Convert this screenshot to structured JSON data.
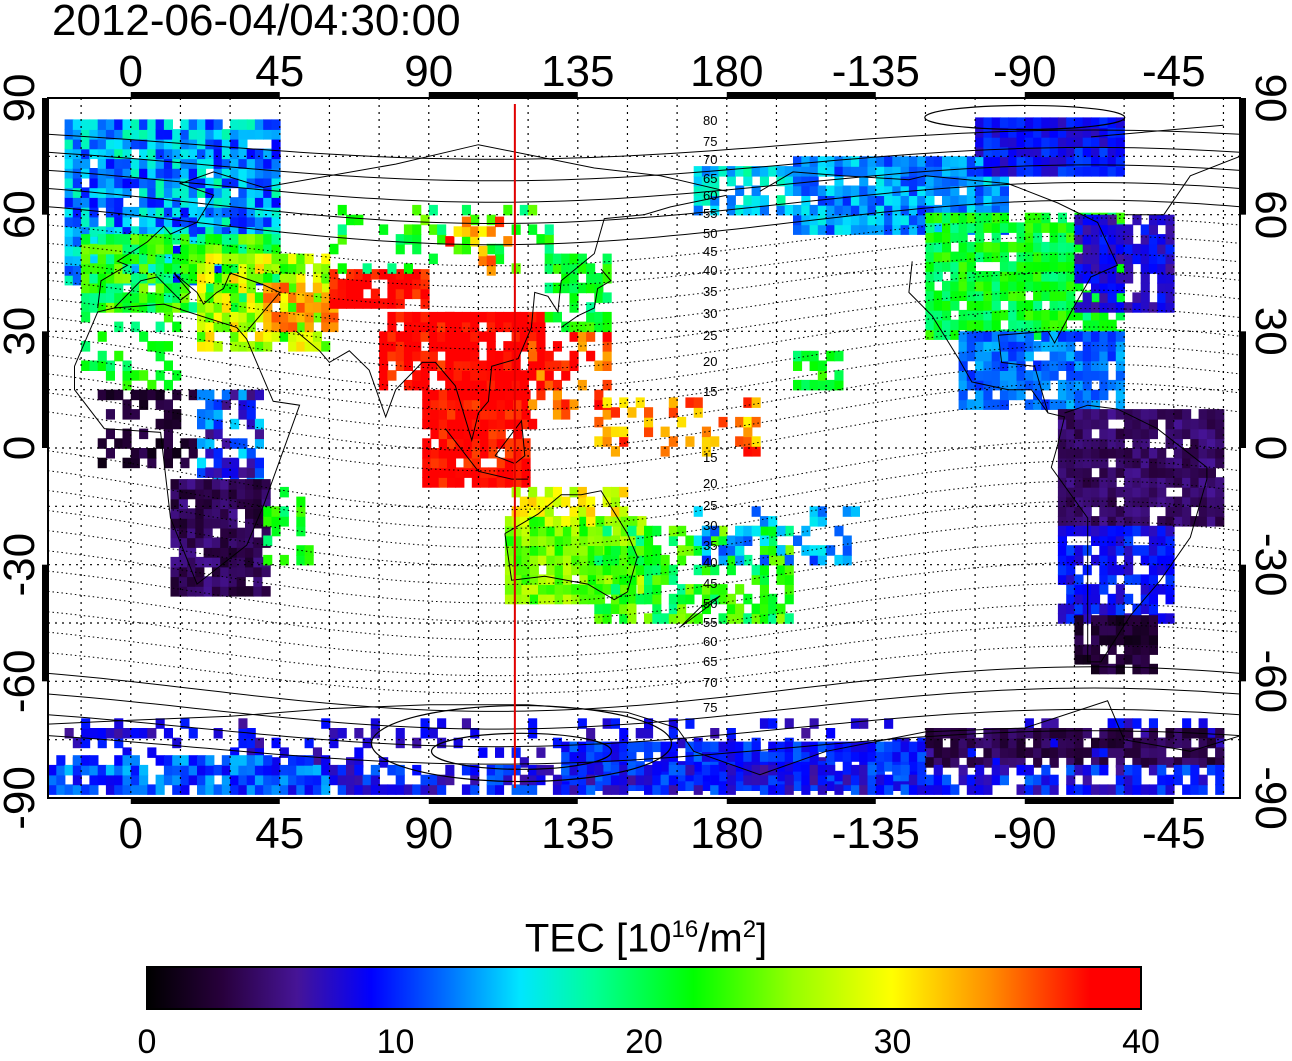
{
  "title": "2012-06-04/04:30:00",
  "top_lon_labels": [
    "0",
    "45",
    "90",
    "135",
    "180",
    "-135",
    "-90",
    "-45"
  ],
  "bottom_lon_labels": [
    "0",
    "45",
    "90",
    "135",
    "180",
    "-135",
    "-90",
    "-45"
  ],
  "left_lat_labels": [
    "90",
    "60",
    "30",
    "0",
    "-30",
    "-60",
    "-90"
  ],
  "right_lat_labels": [
    "90",
    "60",
    "30",
    "0",
    "-30",
    "-60",
    "-90"
  ],
  "mlat_labels_north": [
    "80",
    "75",
    "70",
    "65",
    "60",
    "55",
    "50",
    "45",
    "40",
    "35",
    "30",
    "25",
    "20",
    "15"
  ],
  "mlat_labels_south": [
    "15",
    "20",
    "25",
    "30",
    "35",
    "40",
    "45",
    "50",
    "55",
    "60",
    "65",
    "70",
    "75"
  ],
  "colorbar": {
    "title_main": "TEC  [10",
    "title_exp1": "16",
    "title_mid": "/m",
    "title_exp2": "2",
    "title_end": "]",
    "min": 0,
    "max": 40,
    "tick_labels": [
      "0",
      "10",
      "20",
      "30",
      "40"
    ],
    "colors": [
      "#000000",
      "#3a0a5a",
      "#4a18a8",
      "#0000ff",
      "#0070ff",
      "#00e0ff",
      "#00ff80",
      "#00ff00",
      "#a0ff00",
      "#ffff00",
      "#ff8000",
      "#ff0000"
    ]
  },
  "sun_marker": {
    "longitude": 116,
    "color": "#e00000"
  },
  "map_extent": {
    "lon_min": -25,
    "lon_max": 335,
    "lat_min": -90,
    "lat_max": 90
  }
}
